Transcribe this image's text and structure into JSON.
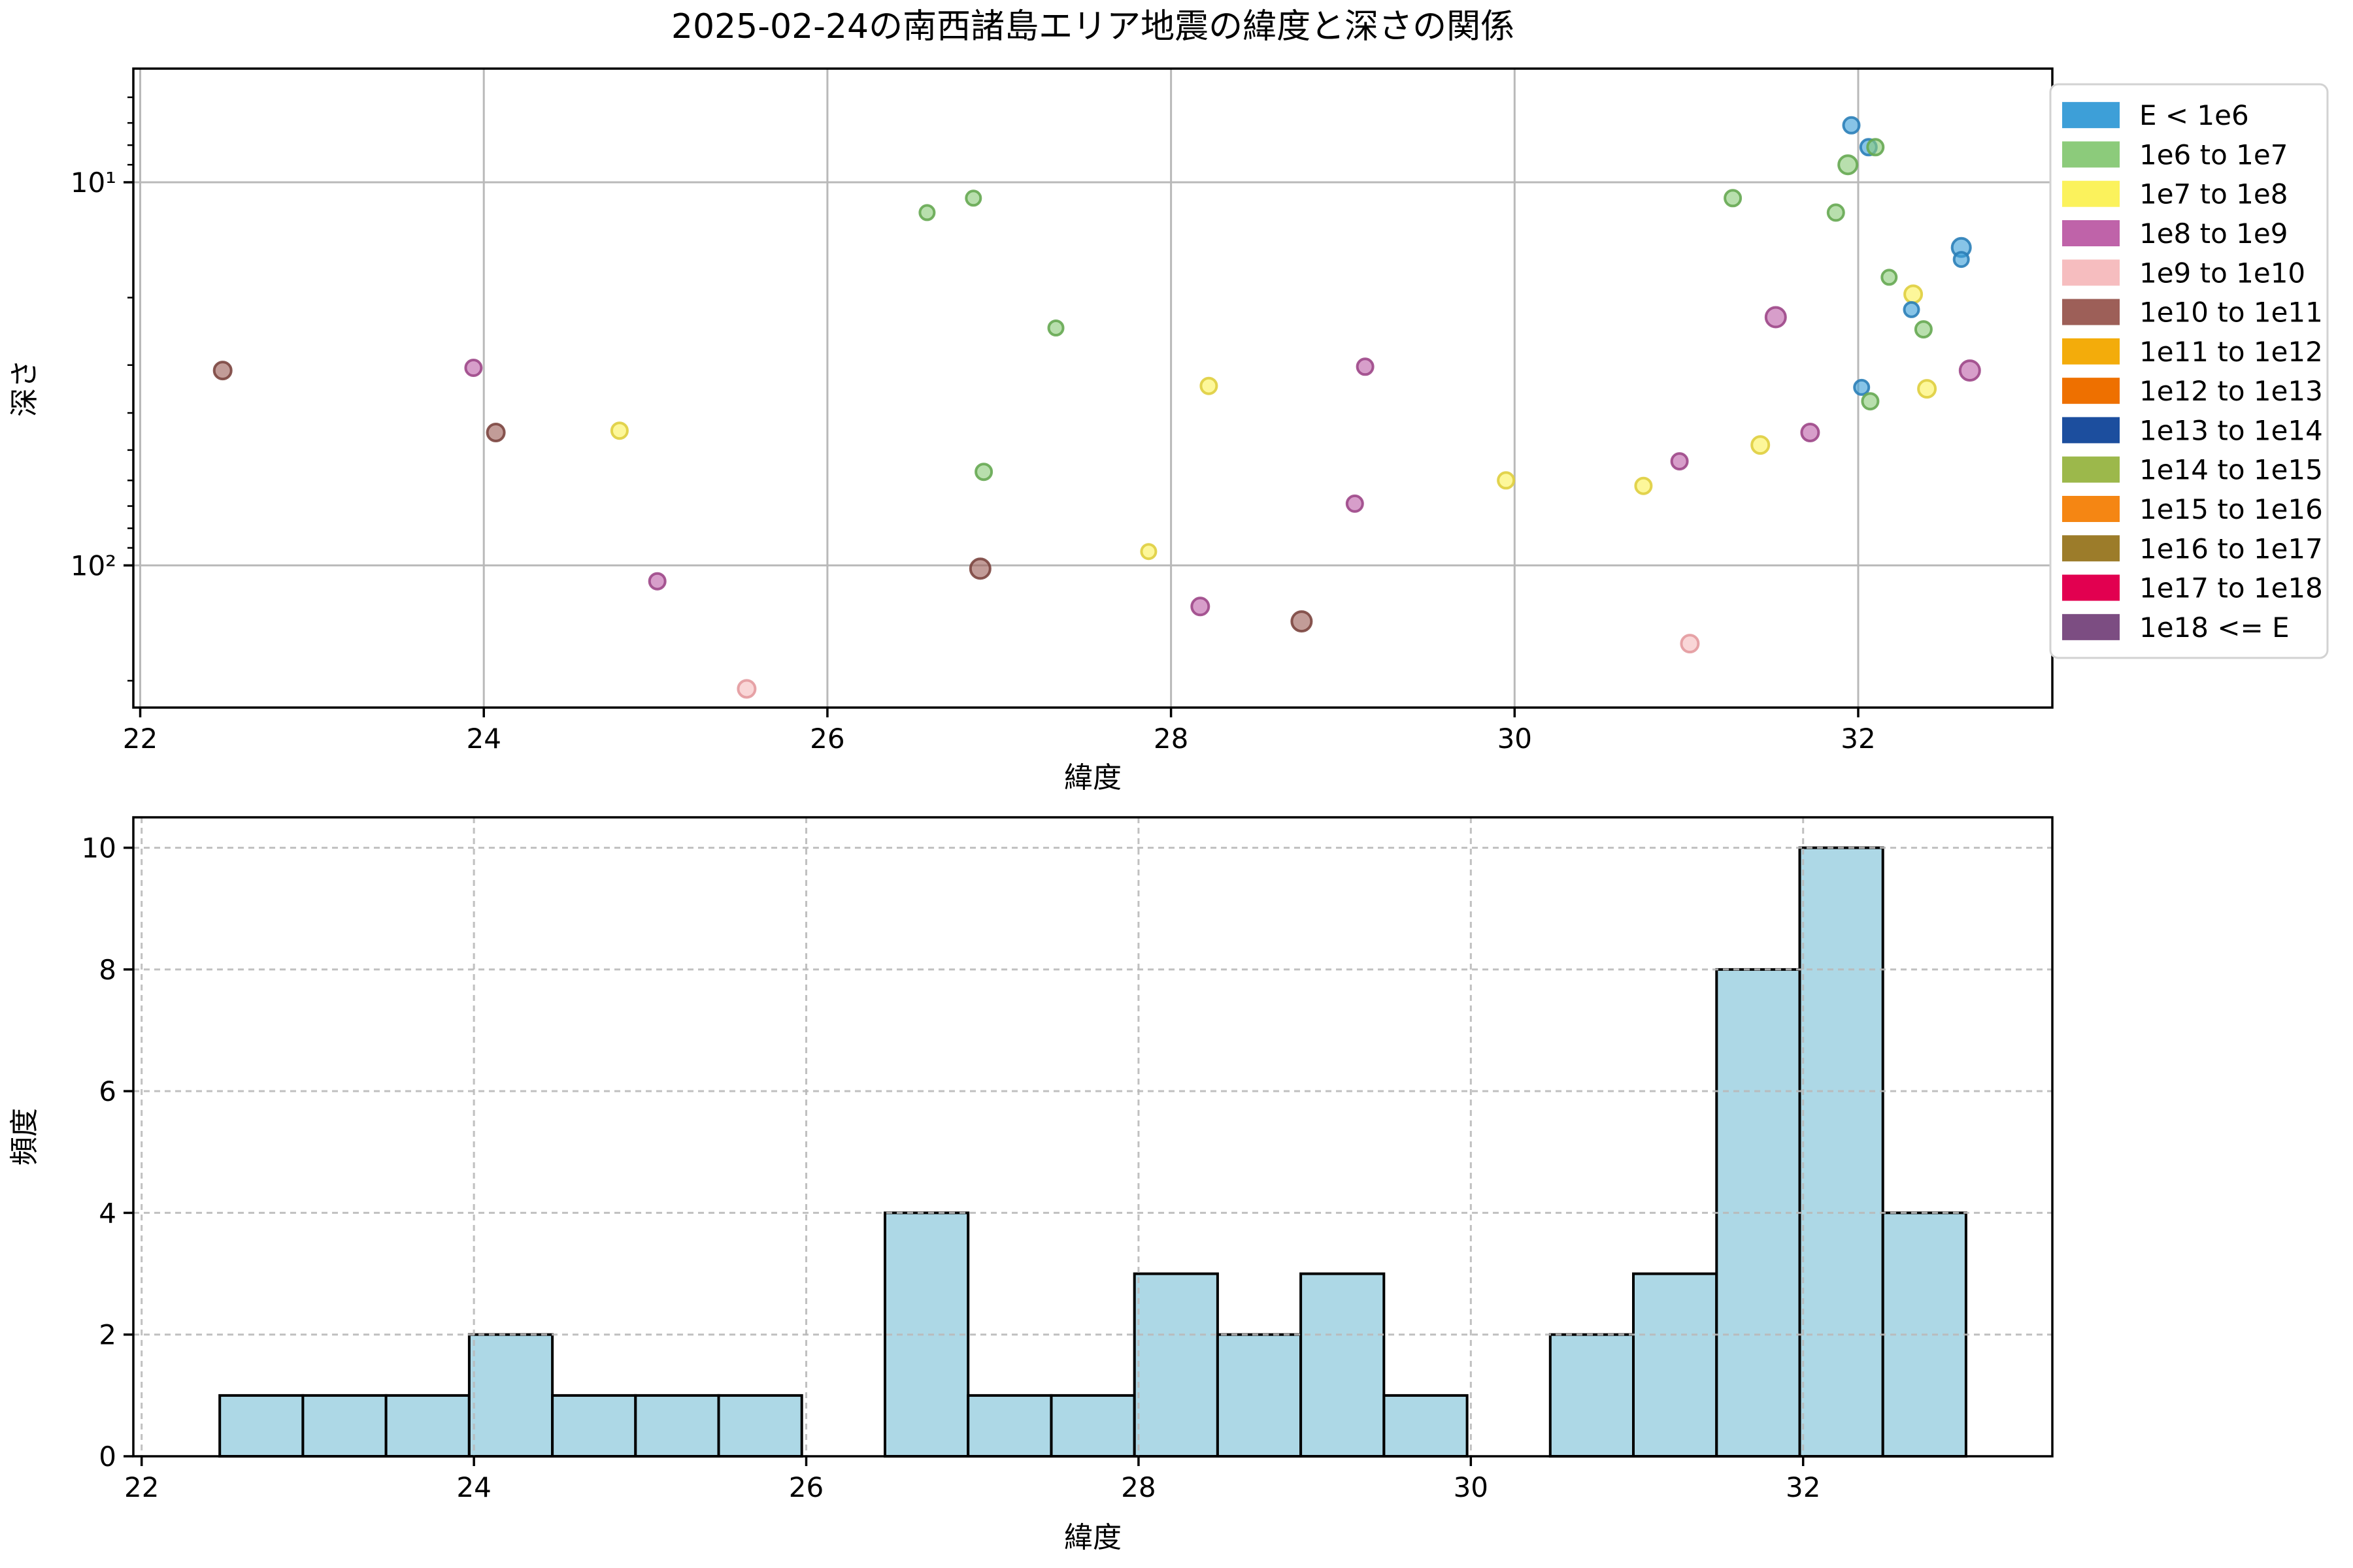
{
  "title": "2025-02-24の南西諸島エリア地震の緯度と深さの関係",
  "legend": {
    "entries": [
      {
        "label": "E < 1e6",
        "color": "#3D9FD8",
        "edge": "#2B7FB8"
      },
      {
        "label": "1e6 to 1e7",
        "color": "#8CCB7B",
        "edge": "#66A852"
      },
      {
        "label": "1e7 to 1e8",
        "color": "#FBF25C",
        "edge": "#DFCE3F"
      },
      {
        "label": "1e8 to 1e9",
        "color": "#BF63A9",
        "edge": "#9D4788"
      },
      {
        "label": "1e9 to 1e10",
        "color": "#F6BDBF",
        "edge": "#E39A9E"
      },
      {
        "label": "1e10 to 1e11",
        "color": "#9D5F58",
        "edge": "#7C4640"
      },
      {
        "label": "1e11 to 1e12",
        "color": "#F3AC0B",
        "edge": "#C98E06"
      },
      {
        "label": "1e12 to 1e13",
        "color": "#EE7000",
        "edge": "#C55D00"
      },
      {
        "label": "1e13 to 1e14",
        "color": "#1C4E9E",
        "edge": "#153C7A"
      },
      {
        "label": "1e14 to 1e15",
        "color": "#9CB84B",
        "edge": "#7E9638"
      },
      {
        "label": "1e15 to 1e16",
        "color": "#F58613",
        "edge": "#CB6E0D"
      },
      {
        "label": "1e16 to 1e17",
        "color": "#9C7C2A",
        "edge": "#7C6220"
      },
      {
        "label": "1e17 to 1e18",
        "color": "#E20050",
        "edge": "#B80041"
      },
      {
        "label": "1e18 <= E",
        "color": "#7C4D82",
        "edge": "#623C67"
      }
    ]
  },
  "chart_data": [
    {
      "type": "scatter",
      "title": "2025-02-24の南西諸島エリア地震の緯度と深さの関係",
      "xlabel": "緯度",
      "ylabel": "深さ",
      "xlim": [
        21.96,
        33.13
      ],
      "xticks": [
        22,
        24,
        26,
        28,
        30,
        32
      ],
      "yscale": "log-inverted",
      "ylim_top_depth": 5.05,
      "ylim_bottom_depth": 235,
      "yticks": [
        {
          "value": 10,
          "label": "10¹"
        },
        {
          "value": 100,
          "label": "10²"
        }
      ],
      "yminorticks": [
        6,
        7,
        8,
        9,
        20,
        30,
        40,
        50,
        60,
        70,
        80,
        90,
        200
      ],
      "grid": "solid",
      "legend_position": "outside-upper-right",
      "point_fields": [
        "latitude",
        "depth_km",
        "energy_category_index",
        "marker_radius_px"
      ],
      "points": [
        [
          22.48,
          31,
          5,
          13
        ],
        [
          23.94,
          30.5,
          3,
          12
        ],
        [
          24.07,
          45,
          5,
          13
        ],
        [
          24.79,
          44.5,
          2,
          12
        ],
        [
          25.01,
          110,
          3,
          12
        ],
        [
          25.53,
          210,
          4,
          13
        ],
        [
          26.58,
          12,
          1,
          11
        ],
        [
          26.85,
          11,
          1,
          11
        ],
        [
          26.91,
          57,
          1,
          12
        ],
        [
          27.33,
          24,
          1,
          11
        ],
        [
          26.89,
          102,
          5,
          15
        ],
        [
          27.87,
          92,
          2,
          11
        ],
        [
          28.22,
          34,
          2,
          12
        ],
        [
          28.17,
          128,
          3,
          13
        ],
        [
          28.76,
          140,
          5,
          15
        ],
        [
          29.13,
          30.3,
          3,
          12
        ],
        [
          29.07,
          69,
          3,
          12
        ],
        [
          29.95,
          60,
          2,
          12
        ],
        [
          30.75,
          62,
          2,
          12
        ],
        [
          30.96,
          53.5,
          3,
          12
        ],
        [
          31.02,
          160,
          4,
          13
        ],
        [
          31.27,
          11,
          1,
          12
        ],
        [
          31.43,
          48.5,
          2,
          13
        ],
        [
          31.52,
          22.5,
          3,
          15
        ],
        [
          31.72,
          45,
          3,
          13
        ],
        [
          31.87,
          12,
          1,
          12
        ],
        [
          31.94,
          9,
          1,
          14
        ],
        [
          31.96,
          7.1,
          0,
          12
        ],
        [
          32.06,
          8.1,
          0,
          12
        ],
        [
          32.1,
          8.1,
          1,
          12
        ],
        [
          32.02,
          34.3,
          0,
          11
        ],
        [
          32.07,
          37.3,
          1,
          12
        ],
        [
          32.18,
          17.7,
          1,
          11
        ],
        [
          32.32,
          19.6,
          2,
          13
        ],
        [
          32.31,
          21.5,
          0,
          11
        ],
        [
          32.38,
          24.2,
          1,
          12
        ],
        [
          32.4,
          34.6,
          2,
          13
        ],
        [
          32.6,
          14.8,
          0,
          14
        ],
        [
          32.6,
          15.9,
          0,
          11
        ],
        [
          32.65,
          31,
          3,
          15
        ]
      ]
    },
    {
      "type": "histogram",
      "xlabel": "緯度",
      "ylabel": "頻度",
      "xlim": [
        21.95,
        33.5
      ],
      "xticks": [
        22,
        24,
        26,
        28,
        30,
        32
      ],
      "ylim": [
        0,
        10.5
      ],
      "yticks": [
        0,
        2,
        4,
        6,
        8,
        10
      ],
      "grid": "dashed",
      "bin_start": 22.47,
      "bin_width": 0.5005,
      "counts": [
        1,
        1,
        1,
        2,
        1,
        1,
        1,
        0,
        4,
        1,
        1,
        3,
        2,
        3,
        1,
        0,
        2,
        3,
        8,
        10,
        4
      ],
      "total_events": 50,
      "bar_color": "#ADD8E6",
      "bar_edge_color": "#000000"
    }
  ]
}
